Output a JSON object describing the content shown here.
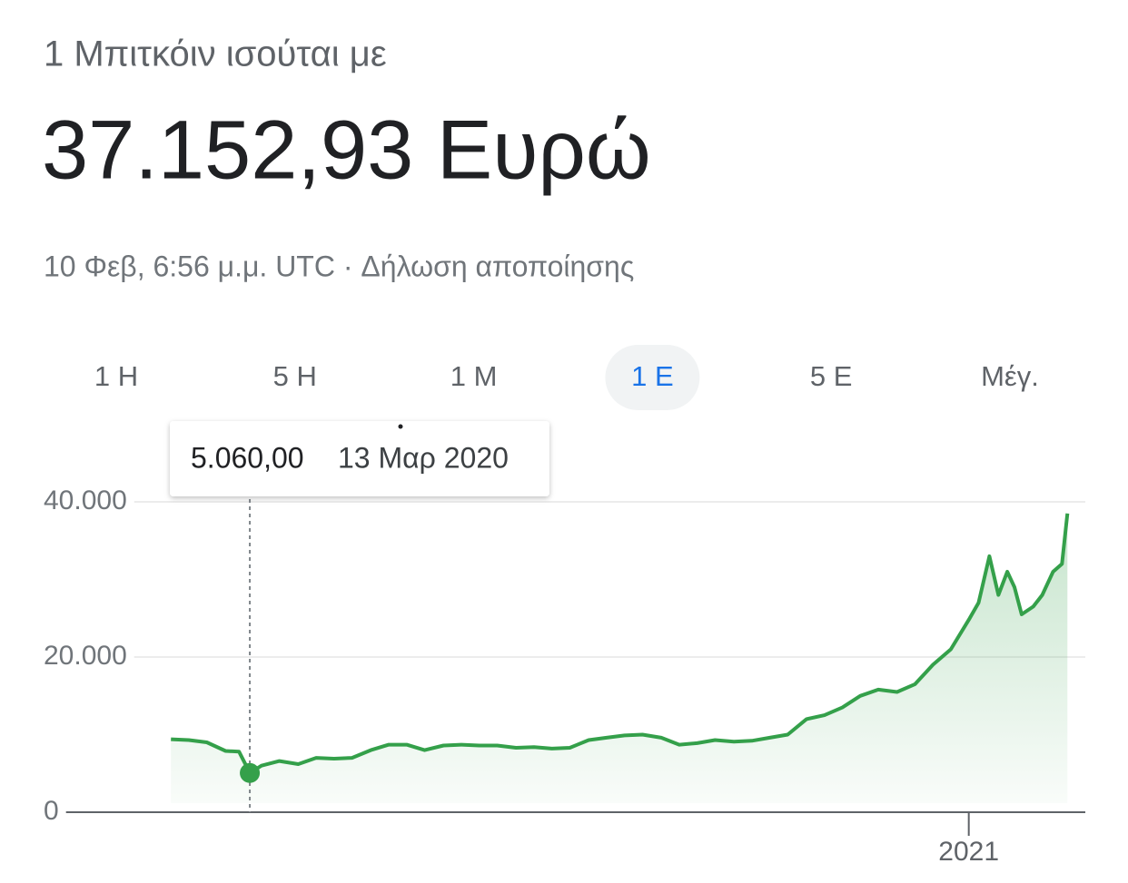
{
  "header": {
    "title": "1 Μπιτκόιν ισούται με",
    "value": "37.152,93 Ευρώ",
    "timestamp": "10 Φεβ, 6:56 μ.μ. UTC · Δήλωση αποποίησης"
  },
  "tabs": [
    "1 Η",
    "5 Η",
    "1 Μ",
    "1 Ε",
    "5 Ε",
    "Μέγ."
  ],
  "selected_tab": 3,
  "chart_data": {
    "type": "line",
    "x": [
      2020.11,
      2020.13,
      2020.15,
      2020.171,
      2020.186,
      2020.198,
      2020.211,
      2020.231,
      2020.252,
      2020.272,
      2020.292,
      2020.312,
      2020.333,
      2020.353,
      2020.373,
      2020.393,
      2020.414,
      2020.434,
      2020.454,
      2020.474,
      2020.495,
      2020.515,
      2020.535,
      2020.555,
      2020.576,
      2020.596,
      2020.616,
      2020.636,
      2020.657,
      2020.677,
      2020.697,
      2020.717,
      2020.738,
      2020.758,
      2020.778,
      2020.798,
      2020.819,
      2020.839,
      2020.859,
      2020.879,
      2020.899,
      2020.92,
      2020.94,
      2020.96,
      2020.98,
      2021.001,
      2021.011,
      2021.023,
      2021.033,
      2021.043,
      2021.051,
      2021.059,
      2021.072,
      2021.082,
      2021.094,
      2021.104,
      2021.11
    ],
    "series": [
      {
        "color": "#34a04a",
        "values": [
          9400,
          9300,
          9000,
          7900,
          7800,
          5060,
          6000,
          6600,
          6200,
          7000,
          6900,
          7000,
          8000,
          8700,
          8700,
          8000,
          8600,
          8700,
          8600,
          8600,
          8300,
          8400,
          8200,
          8300,
          9300,
          9600,
          9900,
          10000,
          9600,
          8700,
          8900,
          9300,
          9100,
          9200,
          9600,
          10000,
          12000,
          12500,
          13500,
          15000,
          15800,
          15500,
          16500,
          19000,
          21000,
          25000,
          27000,
          33000,
          28000,
          31000,
          29000,
          25500,
          26500,
          28000,
          31000,
          32000,
          38500
        ]
      }
    ],
    "xlim": [
      2019.97,
      2021.13
    ],
    "xticks": [
      2021
    ],
    "ylim": [
      0,
      40000
    ],
    "yticks": [
      {
        "value": 40000,
        "label": "40.000"
      },
      {
        "value": 20000,
        "label": "20.000"
      },
      0
    ],
    "grid": true,
    "tooltip": {
      "index": 5,
      "label": "5.060,00",
      "date": "13 Μαρ 2020"
    }
  }
}
